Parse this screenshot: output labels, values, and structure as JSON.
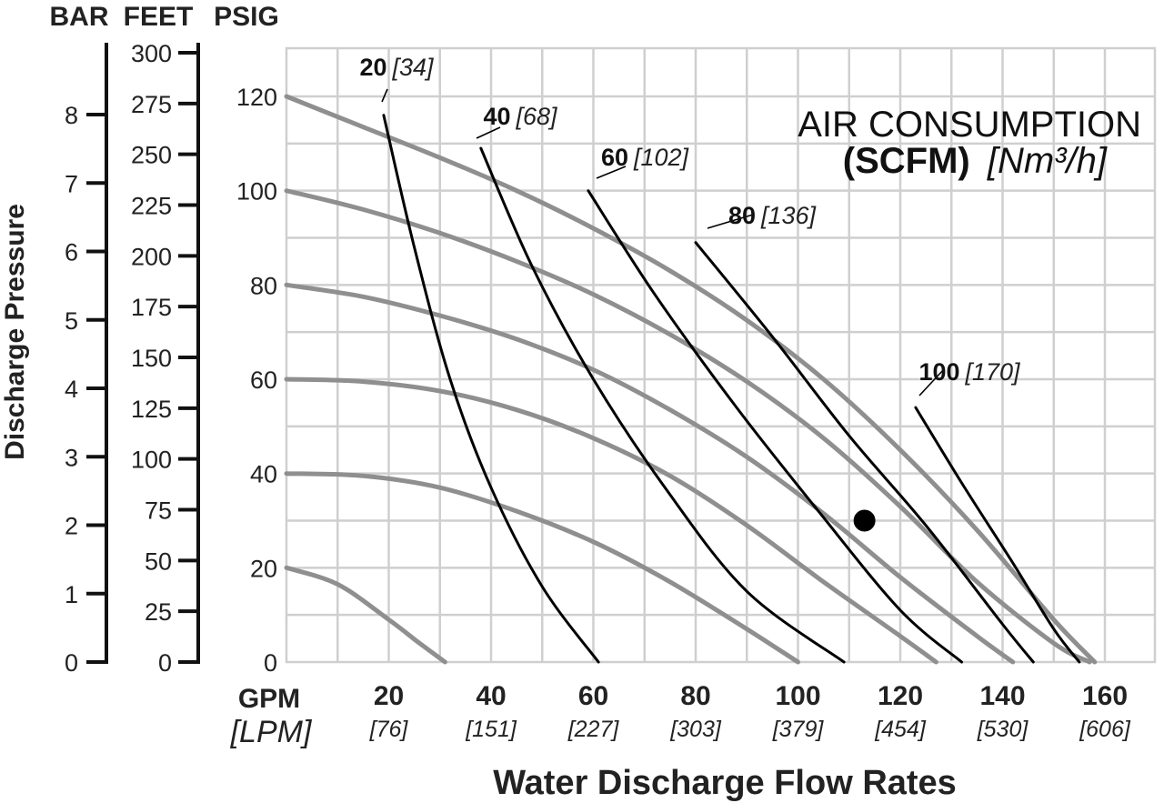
{
  "chart_data": {
    "type": "line",
    "title_line1": "AIR CONSUMPTION",
    "title_line2_bold": "(SCFM)",
    "title_line2_italic": "[Nm³/h]",
    "xlabel": "Water Discharge Flow Rates",
    "ylabel": "Discharge Pressure",
    "x_unit_label": "GPM",
    "x_alt_unit_label": "[LPM]",
    "xlim": [
      0,
      170
    ],
    "ylim": [
      0,
      125
    ],
    "grid": true,
    "x_ticks": [
      {
        "value": 20,
        "label": "20",
        "sub": "[76]"
      },
      {
        "value": 40,
        "label": "40",
        "sub": "[151]"
      },
      {
        "value": 60,
        "label": "60",
        "sub": "[227]"
      },
      {
        "value": 80,
        "label": "80",
        "sub": "[303]"
      },
      {
        "value": 100,
        "label": "100",
        "sub": "[379]"
      },
      {
        "value": 120,
        "label": "120",
        "sub": "[454]"
      },
      {
        "value": 140,
        "label": "140",
        "sub": "[530]"
      },
      {
        "value": 160,
        "label": "160",
        "sub": "[606]"
      }
    ],
    "axes": {
      "bar": {
        "header": "BAR",
        "ticks": [
          {
            "value": 0,
            "label": "0"
          },
          {
            "value": 1,
            "label": "1"
          },
          {
            "value": 2,
            "label": "2"
          },
          {
            "value": 3,
            "label": "3"
          },
          {
            "value": 4,
            "label": "4"
          },
          {
            "value": 5,
            "label": "5"
          },
          {
            "value": 6,
            "label": "6"
          },
          {
            "value": 7,
            "label": "7"
          },
          {
            "value": 8,
            "label": "8"
          }
        ]
      },
      "feet": {
        "header": "FEET",
        "ticks": [
          {
            "value": 0,
            "label": "0"
          },
          {
            "value": 25,
            "label": "25"
          },
          {
            "value": 50,
            "label": "50"
          },
          {
            "value": 75,
            "label": "75"
          },
          {
            "value": 100,
            "label": "100"
          },
          {
            "value": 125,
            "label": "125"
          },
          {
            "value": 150,
            "label": "150"
          },
          {
            "value": 175,
            "label": "175"
          },
          {
            "value": 200,
            "label": "200"
          },
          {
            "value": 225,
            "label": "225"
          },
          {
            "value": 250,
            "label": "250"
          },
          {
            "value": 275,
            "label": "275"
          },
          {
            "value": 300,
            "label": "300"
          }
        ]
      },
      "psig": {
        "header": "PSIG",
        "ticks": [
          {
            "value": 0,
            "label": "0"
          },
          {
            "value": 20,
            "label": "20"
          },
          {
            "value": 40,
            "label": "40"
          },
          {
            "value": 60,
            "label": "60"
          },
          {
            "value": 80,
            "label": "80"
          },
          {
            "value": 100,
            "label": "100"
          },
          {
            "value": 120,
            "label": "120"
          }
        ]
      }
    },
    "pump_curves": [
      {
        "x": [
          0,
          15,
          30,
          45,
          60,
          75,
          90,
          105,
          120,
          135,
          150,
          158
        ],
        "y": [
          120,
          113.5,
          107,
          100,
          92,
          83,
          72.5,
          60,
          45,
          28,
          9,
          0
        ]
      },
      {
        "x": [
          0,
          15,
          30,
          45,
          60,
          75,
          90,
          105,
          120,
          135,
          150,
          157
        ],
        "y": [
          100,
          96,
          91,
          85,
          78,
          69.5,
          59.5,
          47.5,
          33,
          17,
          4,
          0
        ]
      },
      {
        "x": [
          0,
          15,
          30,
          45,
          60,
          75,
          90,
          105,
          120,
          135,
          142
        ],
        "y": [
          80,
          77.5,
          73.5,
          68.5,
          62,
          53.5,
          43.5,
          31.5,
          18,
          5.5,
          0
        ]
      },
      {
        "x": [
          0,
          15,
          30,
          45,
          60,
          75,
          90,
          105,
          120,
          127
        ],
        "y": [
          60,
          59.5,
          57.5,
          53.5,
          47.5,
          39.5,
          29,
          17,
          5.5,
          0
        ]
      },
      {
        "x": [
          0,
          15,
          30,
          45,
          60,
          75,
          90,
          100
        ],
        "y": [
          40,
          39.5,
          37,
          32,
          25.5,
          17,
          7,
          0
        ]
      },
      {
        "x": [
          0,
          10,
          20,
          26,
          31
        ],
        "y": [
          20,
          16.5,
          9,
          4,
          0
        ]
      }
    ],
    "air_curves": [
      {
        "scfm": "20",
        "nm3h": "[34]",
        "x": [
          19,
          25,
          32,
          40,
          50,
          61
        ],
        "y": [
          116,
          88,
          60,
          37,
          16,
          0
        ]
      },
      {
        "scfm": "40",
        "nm3h": "[68]",
        "x": [
          38,
          48,
          60,
          74,
          90,
          109
        ],
        "y": [
          109,
          84,
          60,
          37,
          15,
          0
        ]
      },
      {
        "scfm": "60",
        "nm3h": "[102]",
        "x": [
          59,
          72,
          88,
          104,
          120,
          132
        ],
        "y": [
          100,
          78,
          54,
          32,
          11,
          0
        ]
      },
      {
        "scfm": "80",
        "nm3h": "[136]",
        "x": [
          80,
          95,
          110,
          125,
          140,
          146
        ],
        "y": [
          89,
          69,
          48,
          29,
          8,
          0
        ]
      },
      {
        "scfm": "100",
        "nm3h": "[170]",
        "x": [
          123,
          132,
          142,
          150,
          155
        ],
        "y": [
          54,
          38,
          21,
          7,
          0
        ]
      }
    ],
    "operating_point": {
      "x": 113,
      "y": 30
    }
  }
}
